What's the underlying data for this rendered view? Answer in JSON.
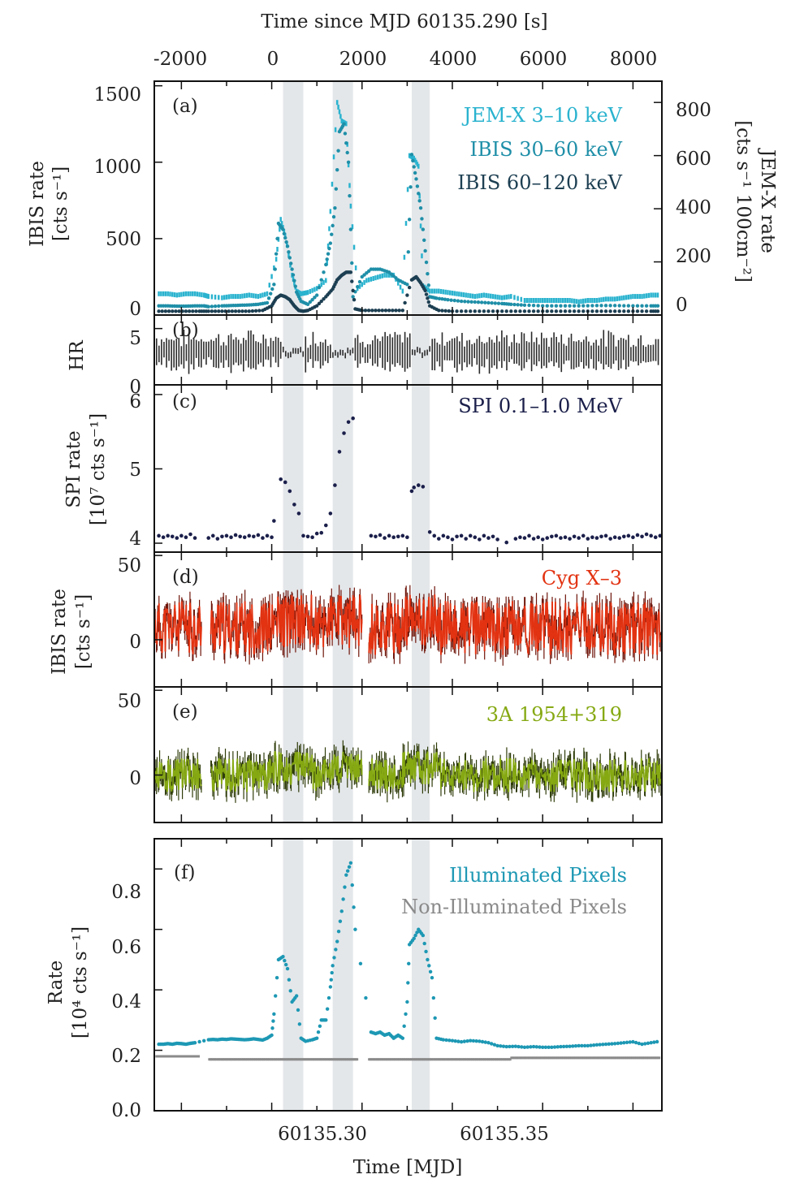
{
  "chart_data": [
    {
      "type": "scatter",
      "panel_label": "(a)",
      "top_axis": {
        "label": "Time since MJD 60135.290 [s]",
        "ticks": [
          "-2000",
          "0",
          "2000",
          "4000",
          "6000",
          "8000"
        ],
        "range": [
          -2600,
          8640
        ]
      },
      "ylabel_left": [
        "IBIS rate",
        "[cts s⁻¹]"
      ],
      "ylabel_right": [
        "JEM-X rate",
        "[cts s⁻¹ 100cm⁻²]"
      ],
      "yticks_left": [
        "0",
        "500",
        "1000",
        "1500"
      ],
      "yticks_right": [
        "0",
        "200",
        "400",
        "600",
        "800"
      ],
      "ylim_left": [
        0,
        1530
      ],
      "ylim_right": [
        0,
        880
      ],
      "series": [
        {
          "name": "JEM-X 3–10 keV",
          "color": "#2ab3cf",
          "axis": "right",
          "x": [
            -2500,
            -2300,
            -2100,
            -1900,
            -1700,
            -1500,
            -1400,
            -1100,
            -900,
            -700,
            -500,
            -300,
            -100,
            100,
            200,
            300,
            450,
            550,
            650,
            800,
            1000,
            1200,
            1300,
            1450,
            1550,
            1650,
            1750,
            1900,
            2100,
            2300,
            2500,
            2700,
            2900,
            3050,
            3150,
            3250,
            3350,
            3500,
            3700,
            3900,
            4100,
            4300,
            4500,
            4700,
            4900,
            5100,
            5300,
            5600,
            5800,
            6000,
            6200,
            6400,
            6600,
            6800,
            7000,
            7200,
            7400,
            7600,
            7800,
            8000,
            8200,
            8400,
            8600
          ],
          "y": [
            80,
            80,
            75,
            80,
            80,
            75,
            70,
            65,
            70,
            70,
            75,
            70,
            80,
            210,
            360,
            300,
            150,
            90,
            80,
            85,
            100,
            130,
            390,
            800,
            730,
            720,
            410,
            100,
            130,
            140,
            150,
            150,
            90,
            600,
            590,
            560,
            110,
            90,
            90,
            85,
            80,
            75,
            70,
            75,
            70,
            65,
            70,
            55,
            55,
            55,
            55,
            55,
            55,
            50,
            55,
            55,
            60,
            60,
            65,
            70,
            70,
            75,
            75
          ]
        },
        {
          "name": "IBIS 30–60 keV",
          "color": "#1f8fa8",
          "axis": "left",
          "x": [
            -2500,
            -2300,
            -2100,
            -1900,
            -1700,
            -1500,
            -1400,
            -1100,
            -900,
            -700,
            -500,
            -300,
            -100,
            50,
            150,
            250,
            350,
            450,
            550,
            650,
            800,
            1000,
            1200,
            1300,
            1400,
            1500,
            1600,
            1700,
            1800,
            2000,
            2200,
            2400,
            2600,
            2800,
            3000,
            3100,
            3200,
            3300,
            3400,
            3500,
            3650,
            3900,
            4200,
            4500,
            4800,
            5100,
            5300,
            5600,
            6000,
            6400,
            6800,
            7200,
            7600,
            8000,
            8400,
            8600
          ],
          "y": [
            60,
            60,
            58,
            58,
            60,
            60,
            55,
            60,
            62,
            64,
            66,
            70,
            80,
            200,
            600,
            560,
            450,
            300,
            150,
            90,
            70,
            130,
            330,
            470,
            700,
            1200,
            1250,
            1000,
            120,
            250,
            300,
            300,
            280,
            230,
            200,
            1050,
            890,
            700,
            420,
            120,
            110,
            100,
            90,
            85,
            80,
            75,
            70,
            65,
            60,
            60,
            60,
            62,
            62,
            60,
            60,
            60
          ]
        },
        {
          "name": "IBIS 60–120 keV",
          "color": "#1d3f52",
          "axis": "left",
          "x": [
            -2500,
            -2200,
            -1900,
            -1600,
            -1400,
            -1100,
            -800,
            -500,
            -200,
            0,
            100,
            200,
            300,
            400,
            500,
            600,
            700,
            800,
            1000,
            1200,
            1350,
            1450,
            1550,
            1650,
            1750,
            1850,
            2000,
            2300,
            2600,
            2900,
            3100,
            3200,
            3300,
            3400,
            3500,
            3700,
            4000,
            4400,
            4800,
            5200,
            5600,
            6000,
            6400,
            6800,
            7200,
            7600,
            8000,
            8400,
            8600
          ],
          "y": [
            25,
            25,
            25,
            25,
            25,
            25,
            25,
            25,
            30,
            60,
            110,
            130,
            120,
            100,
            60,
            30,
            25,
            30,
            60,
            120,
            170,
            230,
            260,
            280,
            280,
            40,
            30,
            30,
            30,
            30,
            230,
            250,
            210,
            160,
            60,
            30,
            25,
            25,
            25,
            25,
            25,
            25,
            25,
            25,
            25,
            25,
            25,
            25,
            25
          ]
        }
      ]
    },
    {
      "type": "line",
      "panel_label": "(b)",
      "ylabel": "HR",
      "yticks": [
        "0",
        "5"
      ],
      "ylim": [
        0,
        6.2
      ],
      "series": [
        {
          "name": "",
          "color": "#2b2b2b",
          "mean": 2.9,
          "amplitude": 1.2
        }
      ]
    },
    {
      "type": "scatter",
      "panel_label": "(c)",
      "ylabel": [
        "SPI rate",
        "[10⁷ cts s⁻¹]"
      ],
      "yticks": [
        "4",
        "5",
        "6"
      ],
      "ylim": [
        3.88,
        6.13
      ],
      "series": [
        {
          "name": "SPI 0.1–1.0 MeV",
          "color": "#1b1f4a",
          "x": [
            -2500,
            -2400,
            -2300,
            -2200,
            -2100,
            -2000,
            -1900,
            -1800,
            -1700,
            -1400,
            -1300,
            -1200,
            -1100,
            -1000,
            -900,
            -800,
            -700,
            -600,
            -500,
            -400,
            -300,
            -200,
            -100,
            0,
            50,
            200,
            300,
            400,
            500,
            600,
            700,
            800,
            900,
            1000,
            1100,
            1200,
            1300,
            1400,
            1500,
            1600,
            1700,
            1800,
            2200,
            2300,
            2400,
            2500,
            2600,
            2700,
            2800,
            2900,
            3000,
            3100,
            3150,
            3250,
            3350,
            3500,
            3600,
            3700,
            3800,
            3900,
            4000,
            4100,
            4200,
            4300,
            4400,
            4500,
            4600,
            4700,
            4800,
            4900,
            5000,
            5200,
            5400,
            5500,
            5600,
            5700,
            5800,
            5900,
            6000,
            6100,
            6200,
            6300,
            6400,
            6500,
            6600,
            6700,
            6800,
            6900,
            7000,
            7100,
            7200,
            7300,
            7400,
            7500,
            7600,
            7700,
            7800,
            7900,
            8000,
            8100,
            8200,
            8300,
            8400,
            8500,
            8600
          ],
          "y": [
            4.1,
            4.08,
            4.1,
            4.09,
            4.07,
            4.1,
            4.08,
            4.12,
            4.07,
            4.07,
            4.1,
            4.06,
            4.09,
            4.1,
            4.08,
            4.11,
            4.09,
            4.08,
            4.1,
            4.09,
            4.11,
            4.07,
            4.1,
            4.08,
            4.3,
            4.86,
            4.82,
            4.7,
            4.52,
            4.4,
            4.1,
            4.09,
            4.08,
            4.13,
            4.14,
            4.24,
            4.4,
            4.78,
            5.23,
            5.48,
            5.63,
            5.68,
            4.1,
            4.09,
            4.11,
            4.07,
            4.1,
            4.08,
            4.09,
            4.1,
            4.08,
            4.7,
            4.75,
            4.78,
            4.76,
            4.15,
            4.1,
            4.06,
            4.1,
            4.08,
            4.05,
            4.09,
            4.1,
            4.06,
            4.1,
            4.08,
            4.05,
            4.1,
            4.07,
            4.09,
            4.05,
            4.01,
            4.06,
            4.08,
            4.07,
            4.1,
            4.06,
            4.08,
            4.05,
            4.07,
            4.09,
            4.1,
            4.07,
            4.08,
            4.06,
            4.09,
            4.07,
            4.1,
            4.06,
            4.08,
            4.07,
            4.09,
            4.1,
            4.06,
            4.08,
            4.07,
            4.09,
            4.1,
            4.08,
            4.11,
            4.09,
            4.12,
            4.1,
            4.08,
            4.1
          ]
        }
      ]
    },
    {
      "type": "line",
      "panel_label": "(d)",
      "ylabel": [
        "IBIS rate",
        "[cts s⁻¹]"
      ],
      "yticks": [
        "0",
        "50"
      ],
      "ylim": [
        -28,
        52
      ],
      "series": [
        {
          "name": "Cyg X–3",
          "color": "#e23312",
          "shadow": "#6e1409",
          "mean": 7,
          "amplitude": 16
        }
      ]
    },
    {
      "type": "line",
      "panel_label": "(e)",
      "yticks": [
        "0",
        "50"
      ],
      "ylim": [
        -28,
        52
      ],
      "series": [
        {
          "name": "3A 1954+319",
          "color": "#86a913",
          "shadow": "#2f3c0a",
          "mean": 0,
          "amplitude": 10
        }
      ]
    },
    {
      "type": "scatter",
      "panel_label": "(f)",
      "ylabel": [
        "Rate",
        "[10⁴ cts s⁻¹]"
      ],
      "yticks": [
        "0.0",
        "0.2",
        "0.4",
        "0.6",
        "0.8"
      ],
      "ylim": [
        0,
        0.9
      ],
      "xlabel": "Time [MJD]",
      "xticks": [
        "60135.30",
        "60135.35"
      ],
      "series": [
        {
          "name": "Illuminated Pixels",
          "color": "#1d98b4",
          "x": [
            -2500,
            -2400,
            -2300,
            -2200,
            -2100,
            -2000,
            -1900,
            -1800,
            -1700,
            -1400,
            -1300,
            -1200,
            -1100,
            -1000,
            -900,
            -800,
            -700,
            -600,
            -500,
            -400,
            -300,
            -200,
            -100,
            0,
            50,
            150,
            250,
            350,
            450,
            550,
            650,
            750,
            900,
            1000,
            1100,
            1200,
            1300,
            1350,
            1450,
            1550,
            1650,
            1750,
            1850,
            2200,
            2300,
            2400,
            2500,
            2600,
            2700,
            2800,
            2900,
            3000,
            3050,
            3150,
            3250,
            3350,
            3450,
            3550,
            3650,
            3800,
            4000,
            4200,
            4400,
            4600,
            4800,
            5000,
            5200,
            5400,
            5600,
            5800,
            6000,
            6200,
            6400,
            6600,
            6800,
            7000,
            7200,
            7400,
            7600,
            7800,
            8000,
            8200,
            8400,
            8600
          ],
          "y": [
            0.22,
            0.22,
            0.222,
            0.22,
            0.223,
            0.222,
            0.22,
            0.223,
            0.225,
            0.235,
            0.236,
            0.235,
            0.237,
            0.236,
            0.238,
            0.237,
            0.236,
            0.235,
            0.236,
            0.238,
            0.236,
            0.234,
            0.24,
            0.25,
            0.32,
            0.5,
            0.51,
            0.47,
            0.36,
            0.38,
            0.24,
            0.23,
            0.235,
            0.24,
            0.3,
            0.3,
            0.41,
            0.48,
            0.56,
            0.66,
            0.78,
            0.82,
            0.6,
            0.26,
            0.255,
            0.26,
            0.25,
            0.255,
            0.24,
            0.25,
            0.24,
            0.36,
            0.55,
            0.57,
            0.6,
            0.58,
            0.5,
            0.44,
            0.24,
            0.235,
            0.232,
            0.228,
            0.232,
            0.23,
            0.225,
            0.215,
            0.212,
            0.213,
            0.21,
            0.212,
            0.21,
            0.21,
            0.212,
            0.213,
            0.215,
            0.215,
            0.218,
            0.22,
            0.222,
            0.225,
            0.228,
            0.22,
            0.225,
            0.23
          ]
        },
        {
          "name": "Non-Illuminated Pixels",
          "color": "#8a8a8a",
          "mean": 0.17
        }
      ]
    }
  ],
  "shaded_bands_s": [
    [
      250,
      700
    ],
    [
      1350,
      1800
    ],
    [
      3100,
      3500
    ]
  ],
  "band_color": "#e4e7ea"
}
